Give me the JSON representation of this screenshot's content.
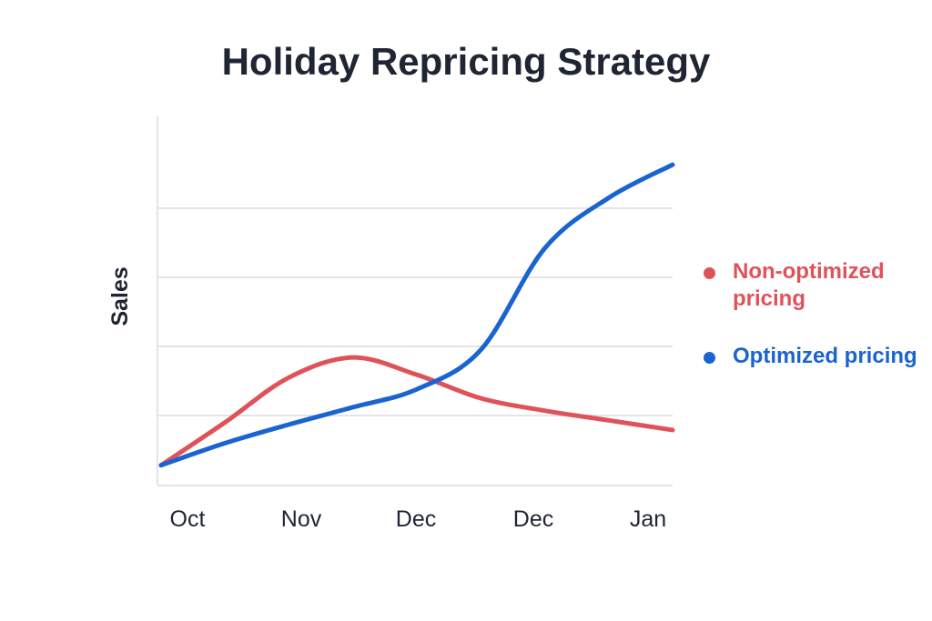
{
  "chart_data": {
    "type": "line",
    "title": "Holiday Repricing Strategy",
    "xlabel": "",
    "ylabel": "Sales",
    "x_tick_labels": [
      "Oct",
      "Nov",
      "Dec",
      "Dec",
      "Jan"
    ],
    "y_tick_labels": [],
    "grid": "horizontal",
    "legend_position": "right",
    "ylim": [
      0,
      5.3
    ],
    "series": [
      {
        "name": "Non-optimized pricing",
        "color": "#e0525a",
        "x": [
          0,
          0.5,
          1,
          1.5,
          2,
          2.5,
          3,
          3.5,
          4
        ],
        "y": [
          0.28,
          0.9,
          1.55,
          1.84,
          1.59,
          1.25,
          1.07,
          0.93,
          0.79
        ]
      },
      {
        "name": "Optimized pricing",
        "color": "#1a64d0",
        "x": [
          0,
          0.5,
          1,
          1.5,
          2,
          2.5,
          3,
          3.5,
          4
        ],
        "y": [
          0.28,
          0.6,
          0.87,
          1.12,
          1.38,
          1.95,
          3.42,
          4.15,
          4.63
        ]
      }
    ]
  }
}
